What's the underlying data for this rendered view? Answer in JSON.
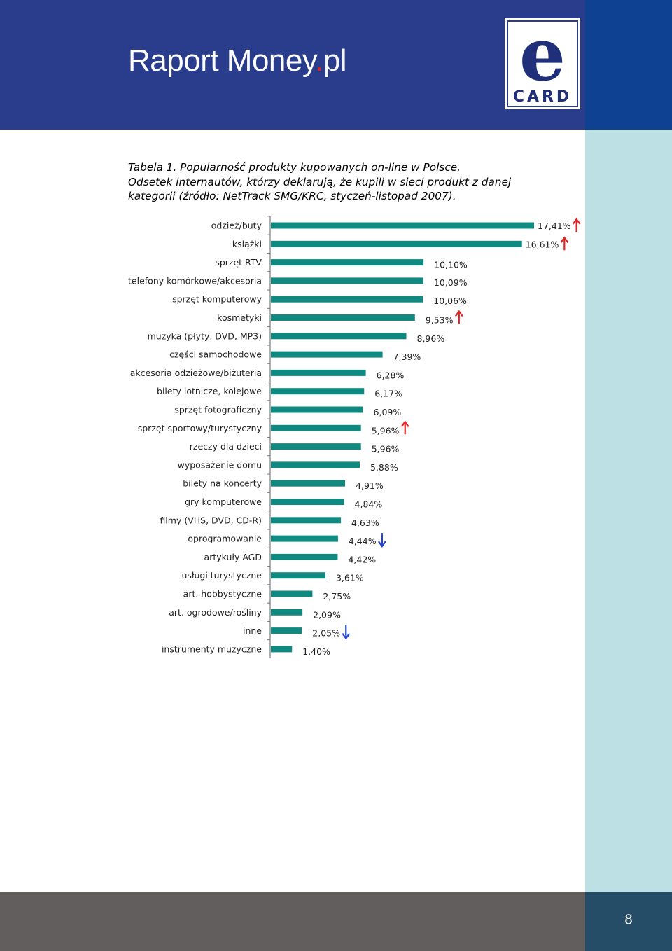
{
  "header": {
    "brand_main": "Raport Money",
    "brand_dot": ".",
    "brand_tld": "pl",
    "logo": {
      "icon": "e-card-logo",
      "letter": "e",
      "word": "CARD"
    }
  },
  "caption": {
    "line1": "Tabela 1. Popularność produkty kupowanych on-line w Polsce.",
    "line2": "Odsetek internautów, którzy deklarują, że kupili w sieci produkt z danej",
    "line3": "kategorii (źródło: NetTrack SMG/KRC, styczeń-listopad 2007)."
  },
  "footer": {
    "page_number": "8"
  },
  "colors": {
    "header_blue": "#2a3c8c",
    "header_right_blue": "#0e4191",
    "side_strip": "#bde0e5",
    "footer_gray": "#625e5d",
    "footer_right": "#264d67",
    "bar": "#108a80",
    "arrow_up": "#e02424",
    "arrow_down": "#2346d6"
  },
  "chart_data": {
    "type": "bar",
    "orientation": "horizontal",
    "categories": [
      "odzież/buty",
      "książki",
      "sprzęt RTV",
      "telefony komórkowe/akcesoria",
      "sprzęt komputerowy",
      "kosmetyki",
      "muzyka (płyty, DVD, MP3)",
      "części samochodowe",
      "akcesoria odzieżowe/biżuteria",
      "bilety lotnicze, kolejowe",
      "sprzęt fotograficzny",
      "sprzęt sportowy/turystyczny",
      "rzeczy dla dzieci",
      "wyposażenie domu",
      "bilety na koncerty",
      "gry komputerowe",
      "filmy (VHS, DVD, CD-R)",
      "oprogramowanie",
      "artykuły AGD",
      "usługi turystyczne",
      "art. hobbystyczne",
      "art. ogrodowe/rośliny",
      "inne",
      "instrumenty muzyczne"
    ],
    "values": [
      17.41,
      16.61,
      10.1,
      10.09,
      10.06,
      9.53,
      8.96,
      7.39,
      6.28,
      6.17,
      6.09,
      5.96,
      5.96,
      5.88,
      4.91,
      4.84,
      4.63,
      4.44,
      4.42,
      3.61,
      2.75,
      2.09,
      2.05,
      1.4
    ],
    "value_labels": [
      "17,41%",
      "16,61%",
      "10,10%",
      "10,09%",
      "10,06%",
      "9,53%",
      "8,96%",
      "7,39%",
      "6,28%",
      "6,17%",
      "6,09%",
      "5,96%",
      "5,96%",
      "5,88%",
      "4,91%",
      "4,84%",
      "4,63%",
      "4,44%",
      "4,42%",
      "3,61%",
      "2,75%",
      "2,09%",
      "2,05%",
      "1,40%"
    ],
    "trends": [
      "up",
      "up",
      "",
      "",
      "",
      "up",
      "",
      "",
      "",
      "",
      "",
      "up",
      "",
      "",
      "",
      "",
      "",
      "down",
      "",
      "",
      "",
      "",
      "down",
      ""
    ],
    "trend_icons": {
      "up": "red-arrow-up-icon",
      "down": "blue-arrow-down-icon"
    },
    "xlim": [
      0,
      17.41
    ],
    "grid": false,
    "legend": "none",
    "title": "",
    "xlabel": "",
    "ylabel": ""
  }
}
